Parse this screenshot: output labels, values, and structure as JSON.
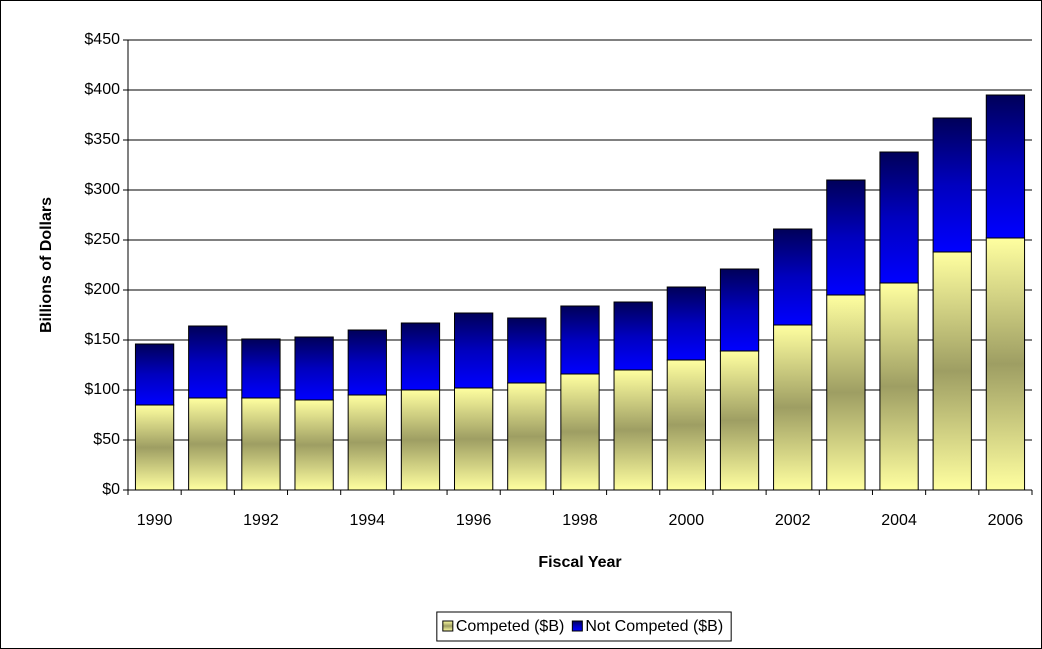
{
  "chart_data": {
    "type": "stacked_bar",
    "categories": [
      "1990",
      null,
      "1992",
      null,
      "1994",
      null,
      "1996",
      null,
      "1998",
      null,
      "2000",
      null,
      "2002",
      null,
      "2004",
      null,
      "2006"
    ],
    "series": [
      {
        "name": "Competed ($B)",
        "color": "#ffffa0",
        "values": [
          85,
          92,
          92,
          90,
          95,
          100,
          102,
          107,
          116,
          120,
          130,
          139,
          165,
          195,
          207,
          238,
          252
        ]
      },
      {
        "name": "Not Competed ($B)",
        "color": "#0000ff",
        "values": [
          61,
          72,
          59,
          63,
          65,
          67,
          75,
          65,
          68,
          68,
          73,
          82,
          96,
          115,
          131,
          134,
          143
        ]
      }
    ],
    "y_label": "Billions of Dollars",
    "x_label": "Fiscal Year",
    "ylim": [
      0,
      450
    ],
    "yticks": [
      {
        "value": 0,
        "label": "$0"
      },
      {
        "value": 50,
        "label": "$50"
      },
      {
        "value": 100,
        "label": "$100"
      },
      {
        "value": 150,
        "label": "$150"
      },
      {
        "value": 200,
        "label": "$200"
      },
      {
        "value": 250,
        "label": "$250"
      },
      {
        "value": 300,
        "label": "$300"
      },
      {
        "value": 350,
        "label": "$350"
      },
      {
        "value": 400,
        "label": "$400"
      },
      {
        "value": 450,
        "label": "$450"
      }
    ],
    "grid": true,
    "legend": "bottom"
  }
}
